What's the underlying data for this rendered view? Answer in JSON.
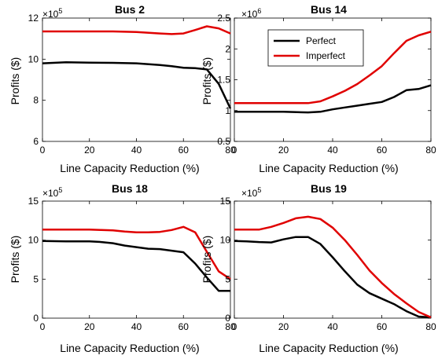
{
  "chart_data": [
    {
      "type": "line",
      "title": "Bus 2",
      "xlabel": "Line Capacity Reduction (%)",
      "ylabel": "Profits ($)",
      "y_multiplier": "×10^5",
      "y_multiplier_base": "×10",
      "y_multiplier_exp": "5",
      "xlim": [
        0,
        80
      ],
      "ylim": [
        6,
        12
      ],
      "xticks": [
        0,
        20,
        40,
        60,
        80
      ],
      "yticks": [
        6,
        8,
        10,
        12
      ],
      "xtick_labels": [
        "0",
        "20",
        "40",
        "60",
        "80"
      ],
      "ytick_labels": [
        "6",
        "8",
        "10",
        "12"
      ],
      "series": [
        {
          "name": "Perfect",
          "color": "#000000",
          "x": [
            0,
            10,
            20,
            30,
            40,
            50,
            55,
            60,
            65,
            70,
            75,
            80
          ],
          "y": [
            9.8,
            9.85,
            9.83,
            9.82,
            9.8,
            9.72,
            9.66,
            9.58,
            9.56,
            9.5,
            8.8,
            7.6
          ]
        },
        {
          "name": "Imperfect",
          "color": "#e00000",
          "x": [
            0,
            10,
            20,
            30,
            40,
            50,
            55,
            60,
            65,
            70,
            75,
            80
          ],
          "y": [
            11.35,
            11.35,
            11.35,
            11.35,
            11.32,
            11.25,
            11.22,
            11.25,
            11.42,
            11.6,
            11.5,
            11.25
          ]
        }
      ]
    },
    {
      "type": "line",
      "title": "Bus 14",
      "xlabel": "Line Capacity Reduction (%)",
      "ylabel": "Profits ($)",
      "y_multiplier": "×10^6",
      "y_multiplier_base": "×10",
      "y_multiplier_exp": "6",
      "xlim": [
        0,
        80
      ],
      "ylim": [
        0.5,
        2.5
      ],
      "xticks": [
        0,
        20,
        40,
        60,
        80
      ],
      "yticks": [
        0.5,
        1,
        1.5,
        2,
        2.5
      ],
      "xtick_labels": [
        "0",
        "20",
        "40",
        "60",
        "80"
      ],
      "ytick_labels": [
        "0.5",
        "1",
        "1.5",
        "2",
        "2.5"
      ],
      "legend": {
        "placement": "top-left",
        "entries": [
          "Perfect",
          "Imperfect"
        ]
      },
      "series": [
        {
          "name": "Perfect",
          "color": "#000000",
          "x": [
            0,
            10,
            20,
            30,
            35,
            40,
            45,
            50,
            55,
            60,
            65,
            70,
            75,
            80
          ],
          "y": [
            0.98,
            0.98,
            0.98,
            0.97,
            0.98,
            1.02,
            1.05,
            1.08,
            1.11,
            1.14,
            1.22,
            1.33,
            1.35,
            1.41
          ]
        },
        {
          "name": "Imperfect",
          "color": "#e00000",
          "x": [
            0,
            10,
            20,
            30,
            35,
            40,
            45,
            50,
            55,
            60,
            65,
            70,
            75,
            80
          ],
          "y": [
            1.12,
            1.12,
            1.12,
            1.12,
            1.15,
            1.23,
            1.32,
            1.43,
            1.57,
            1.72,
            1.93,
            2.13,
            2.22,
            2.28
          ]
        }
      ]
    },
    {
      "type": "line",
      "title": "Bus 18",
      "xlabel": "Line Capacity Reduction (%)",
      "ylabel": "Profits ($)",
      "y_multiplier": "×10^5",
      "y_multiplier_base": "×10",
      "y_multiplier_exp": "5",
      "xlim": [
        0,
        80
      ],
      "ylim": [
        0,
        15
      ],
      "xticks": [
        0,
        20,
        40,
        60,
        80
      ],
      "yticks": [
        0,
        5,
        10,
        15
      ],
      "xtick_labels": [
        "0",
        "20",
        "40",
        "60",
        "80"
      ],
      "ytick_labels": [
        "0",
        "5",
        "10",
        "15"
      ],
      "series": [
        {
          "name": "Perfect",
          "color": "#000000",
          "x": [
            0,
            10,
            20,
            25,
            30,
            35,
            40,
            45,
            50,
            55,
            60,
            65,
            70,
            75,
            80
          ],
          "y": [
            9.9,
            9.85,
            9.85,
            9.75,
            9.6,
            9.3,
            9.1,
            8.9,
            8.85,
            8.65,
            8.45,
            7.0,
            5.2,
            3.5,
            3.5
          ]
        },
        {
          "name": "Imperfect",
          "color": "#e00000",
          "x": [
            0,
            10,
            20,
            25,
            30,
            35,
            40,
            45,
            50,
            55,
            60,
            65,
            70,
            75,
            80
          ],
          "y": [
            11.35,
            11.35,
            11.35,
            11.3,
            11.25,
            11.1,
            11.0,
            11.0,
            11.05,
            11.3,
            11.7,
            11.0,
            8.5,
            6.0,
            5.0
          ]
        }
      ]
    },
    {
      "type": "line",
      "title": "Bus 19",
      "xlabel": "Line Capacity Reduction (%)",
      "ylabel": "Profits ($)",
      "y_multiplier": "×10^5",
      "y_multiplier_base": "×10",
      "y_multiplier_exp": "5",
      "xlim": [
        0,
        80
      ],
      "ylim": [
        0,
        15
      ],
      "xticks": [
        0,
        20,
        40,
        60,
        80
      ],
      "yticks": [
        0,
        5,
        10,
        15
      ],
      "xtick_labels": [
        "0",
        "20",
        "40",
        "60",
        "80"
      ],
      "ytick_labels": [
        "0",
        "5",
        "10",
        "15"
      ],
      "series": [
        {
          "name": "Perfect",
          "color": "#000000",
          "x": [
            0,
            5,
            10,
            15,
            20,
            25,
            30,
            35,
            40,
            45,
            50,
            55,
            60,
            65,
            70,
            75,
            80
          ],
          "y": [
            9.9,
            9.85,
            9.75,
            9.7,
            10.1,
            10.4,
            10.4,
            9.5,
            7.8,
            6.0,
            4.3,
            3.2,
            2.5,
            1.8,
            0.9,
            0.2,
            0.1
          ]
        },
        {
          "name": "Imperfect",
          "color": "#e00000",
          "x": [
            0,
            5,
            10,
            15,
            20,
            25,
            30,
            35,
            40,
            45,
            50,
            55,
            60,
            65,
            70,
            75,
            80
          ],
          "y": [
            11.35,
            11.35,
            11.35,
            11.7,
            12.2,
            12.8,
            13.0,
            12.7,
            11.6,
            10.0,
            8.1,
            6.1,
            4.5,
            3.1,
            1.9,
            0.8,
            0.1
          ]
        }
      ]
    }
  ]
}
